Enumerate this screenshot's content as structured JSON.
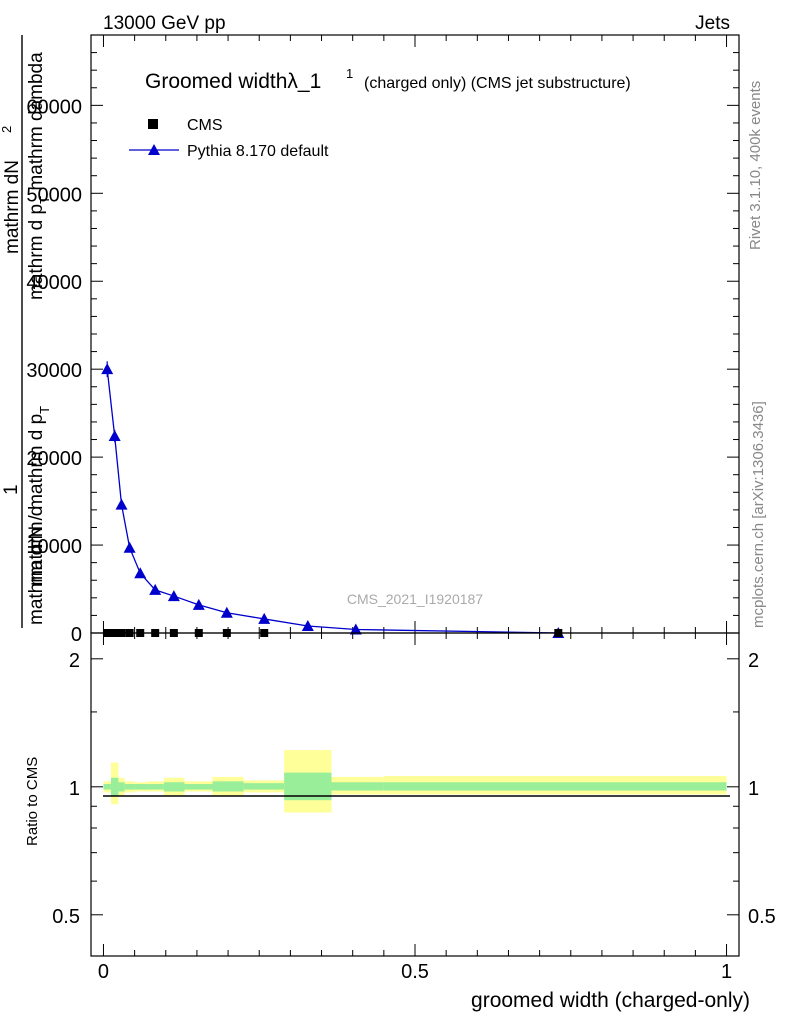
{
  "header": {
    "left": "13000 GeV pp",
    "right": "Jets"
  },
  "side": {
    "rivet": "Rivet 3.1.10,  400k events",
    "mcplots": "mcplots.cern.ch [arXiv:1306.3436]"
  },
  "chart_data": [
    {
      "type": "scatter",
      "title": "Groomed width",
      "title_symbol": "λ_1",
      "title_superscript": "1",
      "title_suffix": "(charged only) (CMS jet substructure)",
      "watermark": "CMS_2021_I1920187",
      "ylabel_fraction_num": "1",
      "ylabel_lines": [
        "mathrm d N / mathrm d p_T",
        "mathrm d^2 N / mathrm d p_T mathrm d lambda",
        "mathrm dN",
        "mathrm d p_T mathrm d lambda"
      ],
      "ylabel_main_a": "mathrm d",
      "ylabel_main_b": "N",
      "ylabel_sup": "2",
      "ylabel_den_a": "mathrm d p",
      "ylabel_den_sub": "T",
      "ylabel_den_b": " mathrm d",
      "ylabel_den_c": "ambda",
      "ylabel_left_a": "mathrm d N / mathrm d p",
      "ylabel_left_sub": "T",
      "ylabel_left_b": "mathrm d",
      "ylabel_left_c": "mathrm d",
      "ylim": [
        0,
        68000
      ],
      "xlim": [
        -0.02,
        1.02
      ],
      "yticks": [
        0,
        10000,
        20000,
        30000,
        40000,
        50000,
        60000
      ],
      "ytick_labels": [
        "0",
        "10000",
        "20000",
        "30000",
        "40000",
        "50000",
        "60000"
      ],
      "legend": [
        {
          "name": "CMS",
          "marker": "square",
          "color": "#000000"
        },
        {
          "name": "Pythia 8.170 default",
          "marker": "triangle",
          "color": "#0000cc"
        }
      ],
      "series": [
        {
          "name": "Pythia 8.170 default",
          "color": "#0000cc",
          "x": [
            0.006,
            0.018,
            0.029,
            0.042,
            0.059,
            0.083,
            0.113,
            0.153,
            0.198,
            0.258,
            0.328,
            0.405,
            0.73
          ],
          "y": [
            30000,
            22400,
            14600,
            9700,
            6800,
            4900,
            4200,
            3200,
            2300,
            1600,
            800,
            400,
            0
          ],
          "err": [
            900,
            700,
            500,
            350,
            250,
            180,
            160,
            130,
            100,
            80,
            50,
            30,
            10
          ]
        },
        {
          "name": "CMS",
          "color": "#000000",
          "x": [
            0.006,
            0.018,
            0.029,
            0.042,
            0.059,
            0.083,
            0.113,
            0.153,
            0.198,
            0.258,
            0.73
          ],
          "y": [
            0,
            0,
            0,
            0,
            0,
            0,
            0,
            0,
            0,
            0,
            0
          ]
        }
      ]
    },
    {
      "type": "area",
      "ylabel": "Ratio to CMS",
      "xlabel": "groomed width (charged-only)",
      "xlim": [
        -0.02,
        1.02
      ],
      "ylim": [
        0.4,
        2.3
      ],
      "yscale": "log",
      "yticks": [
        0.5,
        1,
        2
      ],
      "ytick_labels": [
        "0.5",
        "1",
        "2"
      ],
      "xticks": [
        0,
        0.5,
        1
      ],
      "xtick_labels": [
        "0",
        "0.5",
        "1"
      ],
      "band_colors": {
        "inner": "#99ee99",
        "outer": "#ffff99",
        "line": "#000000"
      },
      "bins": [
        {
          "lo": 0.0,
          "hi": 0.012,
          "inner": [
            0.985,
            1.015
          ],
          "outer": [
            0.97,
            1.03
          ]
        },
        {
          "lo": 0.012,
          "hi": 0.024,
          "inner": [
            0.95,
            1.05
          ],
          "outer": [
            0.91,
            1.14
          ]
        },
        {
          "lo": 0.024,
          "hi": 0.034,
          "inner": [
            0.975,
            1.025
          ],
          "outer": [
            0.955,
            1.05
          ]
        },
        {
          "lo": 0.034,
          "hi": 0.05,
          "inner": [
            0.985,
            1.015
          ],
          "outer": [
            0.97,
            1.03
          ]
        },
        {
          "lo": 0.05,
          "hi": 0.07,
          "inner": [
            0.985,
            1.015
          ],
          "outer": [
            0.975,
            1.025
          ]
        },
        {
          "lo": 0.07,
          "hi": 0.097,
          "inner": [
            0.985,
            1.015
          ],
          "outer": [
            0.975,
            1.03
          ]
        },
        {
          "lo": 0.097,
          "hi": 0.13,
          "inner": [
            0.975,
            1.025
          ],
          "outer": [
            0.955,
            1.05
          ]
        },
        {
          "lo": 0.13,
          "hi": 0.175,
          "inner": [
            0.985,
            1.015
          ],
          "outer": [
            0.975,
            1.03
          ]
        },
        {
          "lo": 0.175,
          "hi": 0.225,
          "inner": [
            0.975,
            1.03
          ],
          "outer": [
            0.955,
            1.055
          ]
        },
        {
          "lo": 0.225,
          "hi": 0.29,
          "inner": [
            0.985,
            1.02
          ],
          "outer": [
            0.97,
            1.035
          ]
        },
        {
          "lo": 0.29,
          "hi": 0.366,
          "inner": [
            0.93,
            1.08
          ],
          "outer": [
            0.87,
            1.22
          ]
        },
        {
          "lo": 0.366,
          "hi": 0.45,
          "inner": [
            0.98,
            1.025
          ],
          "outer": [
            0.96,
            1.055
          ]
        },
        {
          "lo": 0.45,
          "hi": 1.0,
          "inner": [
            0.98,
            1.025
          ],
          "outer": [
            0.96,
            1.06
          ]
        }
      ]
    }
  ]
}
